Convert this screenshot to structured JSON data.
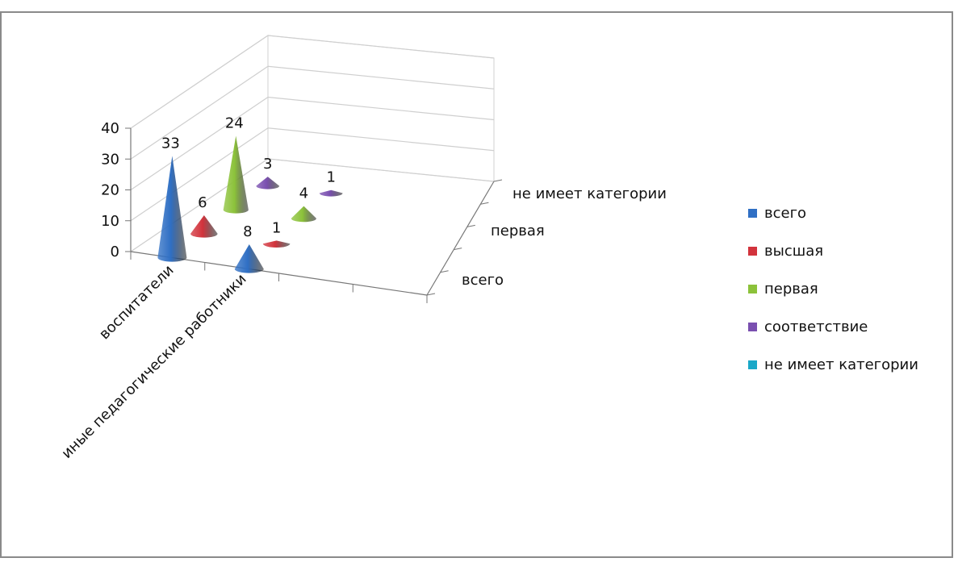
{
  "chart_data": {
    "type": "bar",
    "shape": "3d-cone",
    "categories": [
      "воспитатели",
      "иные педагогические работники"
    ],
    "depth_labels": [
      "всего",
      "первая",
      "не имеет категории"
    ],
    "series": [
      {
        "name": "всего",
        "color": "#2f6fc4",
        "values": [
          33,
          8
        ]
      },
      {
        "name": "высшая",
        "color": "#d2333c",
        "values": [
          6,
          1
        ]
      },
      {
        "name": "первая",
        "color": "#8cc23a",
        "values": [
          24,
          4
        ]
      },
      {
        "name": "соответствие",
        "color": "#7a4fb0",
        "values": [
          3,
          1
        ]
      },
      {
        "name": "не имеет категории",
        "color": "#1aa8c8",
        "values": [
          null,
          null
        ]
      }
    ],
    "y_ticks": [
      "0",
      "10",
      "20",
      "30",
      "40"
    ],
    "ylim": [
      0,
      40
    ],
    "grid": true,
    "legend_position": "right"
  }
}
